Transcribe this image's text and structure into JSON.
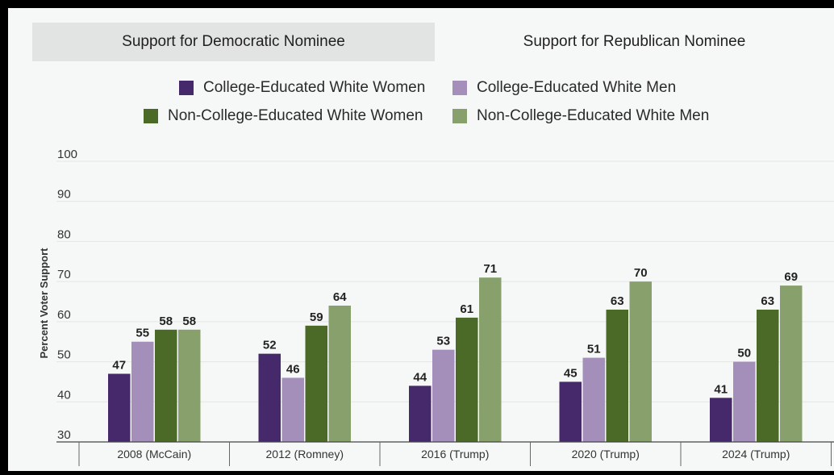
{
  "tabs": {
    "democratic": "Support for Democratic Nominee",
    "republican": "Support for Republican Nominee",
    "active": "republican"
  },
  "colors": {
    "accent_dark_purple": "#46296a",
    "accent_light_purple": "#a48fbb",
    "accent_dark_green": "#4b6a28",
    "accent_light_green": "#88a06c"
  },
  "chart_data": {
    "type": "bar",
    "title": "",
    "xlabel": "",
    "ylabel": "Percent Voter Support",
    "ylim": [
      30,
      100
    ],
    "yticks": [
      30,
      40,
      50,
      60,
      70,
      80,
      90,
      100
    ],
    "grid": true,
    "legend_position": "top",
    "categories": [
      "2008 (McCain)",
      "2012 (Romney)",
      "2016 (Trump)",
      "2020 (Trump)",
      "2024 (Trump)"
    ],
    "series": [
      {
        "name": "College-Educated White Women",
        "color": "#46296a",
        "values": [
          47,
          52,
          44,
          45,
          41
        ]
      },
      {
        "name": "College-Educated White Men",
        "color": "#a48fbb",
        "values": [
          55,
          46,
          53,
          51,
          50
        ]
      },
      {
        "name": "Non-College-Educated White Women",
        "color": "#4b6a28",
        "values": [
          58,
          59,
          61,
          63,
          63
        ]
      },
      {
        "name": "Non-College-Educated White Men",
        "color": "#88a06c",
        "values": [
          58,
          64,
          71,
          70,
          69
        ]
      }
    ]
  }
}
